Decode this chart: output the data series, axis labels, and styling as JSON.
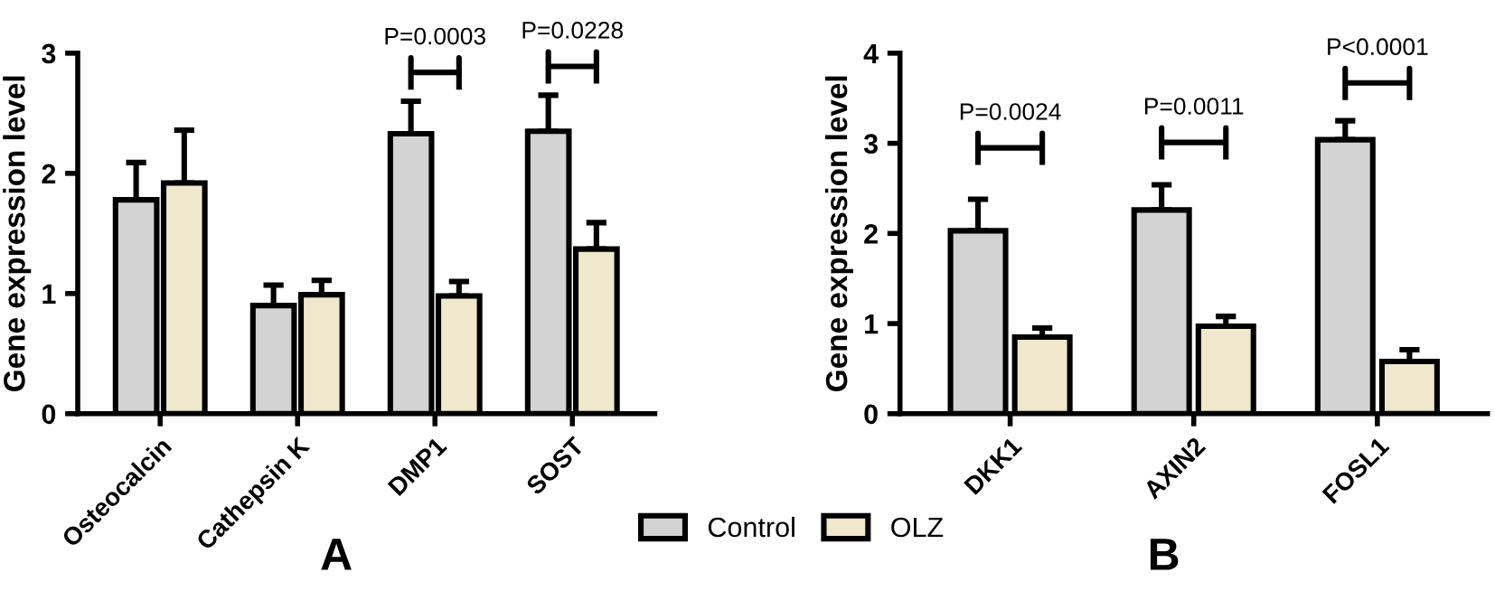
{
  "chart_data": [
    {
      "type": "bar",
      "title": "A",
      "ylabel": "Gene expression level",
      "categories": [
        "Osteocalcin",
        "Cathepsin K",
        "DMP1",
        "SOST"
      ],
      "series": [
        {
          "name": "Control",
          "color": "#d3d3d3",
          "values": [
            1.78,
            0.9,
            2.33,
            2.35
          ],
          "errors": [
            [
              1.78,
              2.09
            ],
            [
              0.9,
              1.07
            ],
            [
              2.33,
              2.6
            ],
            [
              2.35,
              2.65
            ]
          ]
        },
        {
          "name": "OLZ",
          "color": "#efe8cc",
          "values": [
            1.92,
            0.99,
            0.98,
            1.37
          ],
          "errors": [
            [
              1.92,
              2.36
            ],
            [
              0.99,
              1.11
            ],
            [
              0.98,
              1.1
            ],
            [
              1.37,
              1.59
            ]
          ]
        }
      ],
      "ylim": [
        0,
        3
      ],
      "yticks": [
        0,
        1,
        2,
        3
      ],
      "grid": false,
      "legend": "bottom",
      "annotations": [
        {
          "text": "P=0.0003",
          "x": "DMP1",
          "y": 2.84
        },
        {
          "text": "P=0.0228",
          "x": "SOST",
          "y": 2.89
        }
      ]
    },
    {
      "type": "bar",
      "title": "B",
      "ylabel": "Gene expression level",
      "categories": [
        "DKK1",
        "AXIN2",
        "FOSL1"
      ],
      "series": [
        {
          "color": "#d3d3d3",
          "values": [
            2.03,
            2.26,
            3.04
          ],
          "errors": [
            [
              2.03,
              2.38
            ],
            [
              2.26,
              2.54
            ],
            [
              3.04,
              3.25
            ]
          ]
        },
        {
          "color": "#efe8cc",
          "values": [
            0.85,
            0.97,
            0.58
          ],
          "errors": [
            [
              0.85,
              0.95
            ],
            [
              0.97,
              1.08
            ],
            [
              0.58,
              0.71
            ]
          ]
        }
      ],
      "ylim": [
        0,
        4
      ],
      "yticks": [
        0,
        1,
        2,
        3,
        4
      ],
      "grid": false,
      "annotations": [
        {
          "text": "P=0.0024",
          "x": "DKK1",
          "y": 2.95
        },
        {
          "text": "P=0.0011",
          "x": "AXIN2",
          "y": 3.01
        },
        {
          "text": "P<0.0001",
          "x": "FOSL1",
          "y": 3.67
        }
      ]
    }
  ]
}
